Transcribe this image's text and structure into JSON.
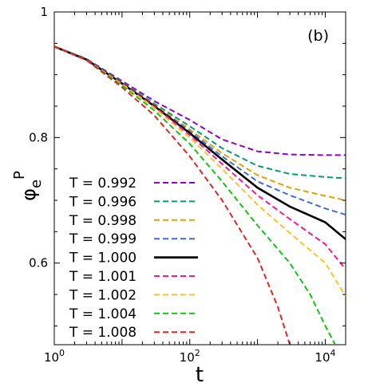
{
  "chart_data": {
    "type": "line",
    "panel_label": "(b)",
    "xlabel": "t",
    "ylabel": {
      "base": "φ",
      "sub": "e",
      "sup": "P"
    },
    "x_scale": "log",
    "xlim": [
      1,
      20000
    ],
    "ylim": [
      0.47,
      1.0
    ],
    "x_ticks": [
      {
        "value": 1,
        "base": "10",
        "exp": "0"
      },
      {
        "value": 100,
        "base": "10",
        "exp": "2"
      },
      {
        "value": 10000,
        "base": "10",
        "exp": "4"
      }
    ],
    "y_ticks": [
      {
        "value": 1.0,
        "label": "1"
      },
      {
        "value": 0.8,
        "label": "0.8"
      },
      {
        "value": 0.6,
        "label": "0.6"
      }
    ],
    "legend_position": "lower-left",
    "series": [
      {
        "name": "T = 0.992",
        "color": "#9400d3",
        "style": "dashed",
        "points": [
          [
            1,
            0.945
          ],
          [
            3,
            0.925
          ],
          [
            10,
            0.89
          ],
          [
            30,
            0.858
          ],
          [
            100,
            0.828
          ],
          [
            300,
            0.797
          ],
          [
            1000,
            0.778
          ],
          [
            3000,
            0.773
          ],
          [
            10000,
            0.772
          ],
          [
            20000,
            0.772
          ]
        ]
      },
      {
        "name": "T = 0.996",
        "color": "#009e73",
        "style": "dashed",
        "points": [
          [
            1,
            0.945
          ],
          [
            3,
            0.925
          ],
          [
            10,
            0.888
          ],
          [
            30,
            0.854
          ],
          [
            100,
            0.818
          ],
          [
            300,
            0.783
          ],
          [
            1000,
            0.755
          ],
          [
            3000,
            0.742
          ],
          [
            10000,
            0.737
          ],
          [
            20000,
            0.735
          ]
        ]
      },
      {
        "name": "T = 0.998",
        "color": "#e69f00",
        "style": "dashed",
        "points": [
          [
            1,
            0.945
          ],
          [
            3,
            0.924
          ],
          [
            10,
            0.887
          ],
          [
            30,
            0.852
          ],
          [
            100,
            0.813
          ],
          [
            300,
            0.775
          ],
          [
            1000,
            0.74
          ],
          [
            3000,
            0.72
          ],
          [
            10000,
            0.707
          ],
          [
            20000,
            0.7
          ]
        ]
      },
      {
        "name": "T = 0.999",
        "color": "#3d6cd9",
        "style": "dashed",
        "points": [
          [
            1,
            0.945
          ],
          [
            3,
            0.924
          ],
          [
            10,
            0.887
          ],
          [
            30,
            0.851
          ],
          [
            100,
            0.81
          ],
          [
            300,
            0.77
          ],
          [
            1000,
            0.73
          ],
          [
            3000,
            0.708
          ],
          [
            10000,
            0.687
          ],
          [
            20000,
            0.677
          ]
        ]
      },
      {
        "name": "T = 1.000",
        "color": "#000000",
        "style": "solid",
        "points": [
          [
            1,
            0.945
          ],
          [
            3,
            0.924
          ],
          [
            10,
            0.886
          ],
          [
            30,
            0.85
          ],
          [
            100,
            0.807
          ],
          [
            300,
            0.765
          ],
          [
            1000,
            0.72
          ],
          [
            3000,
            0.69
          ],
          [
            10000,
            0.665
          ],
          [
            20000,
            0.638
          ]
        ]
      },
      {
        "name": "T = 1.001",
        "color": "#ff1493",
        "style": "dashed",
        "points": [
          [
            1,
            0.945
          ],
          [
            3,
            0.924
          ],
          [
            10,
            0.886
          ],
          [
            30,
            0.849
          ],
          [
            100,
            0.804
          ],
          [
            300,
            0.758
          ],
          [
            1000,
            0.708
          ],
          [
            3000,
            0.67
          ],
          [
            10000,
            0.63
          ],
          [
            20000,
            0.59
          ]
        ]
      },
      {
        "name": "T = 1.002",
        "color": "#ffc125",
        "style": "dashed",
        "points": [
          [
            1,
            0.945
          ],
          [
            3,
            0.923
          ],
          [
            10,
            0.885
          ],
          [
            30,
            0.847
          ],
          [
            100,
            0.8
          ],
          [
            300,
            0.75
          ],
          [
            1000,
            0.693
          ],
          [
            3000,
            0.648
          ],
          [
            10000,
            0.6
          ],
          [
            20000,
            0.547
          ]
        ]
      },
      {
        "name": "T = 1.004",
        "color": "#11c511",
        "style": "dashed",
        "points": [
          [
            1,
            0.945
          ],
          [
            3,
            0.923
          ],
          [
            10,
            0.883
          ],
          [
            30,
            0.843
          ],
          [
            100,
            0.79
          ],
          [
            300,
            0.73
          ],
          [
            1000,
            0.66
          ],
          [
            3000,
            0.6
          ],
          [
            6000,
            0.55
          ],
          [
            10000,
            0.5
          ],
          [
            14000,
            0.47
          ]
        ]
      },
      {
        "name": "T = 1.008",
        "color": "#e3261e",
        "style": "dashed",
        "points": [
          [
            1,
            0.945
          ],
          [
            3,
            0.923
          ],
          [
            10,
            0.88
          ],
          [
            30,
            0.835
          ],
          [
            100,
            0.77
          ],
          [
            300,
            0.7
          ],
          [
            1000,
            0.608
          ],
          [
            2000,
            0.53
          ],
          [
            3000,
            0.47
          ]
        ]
      }
    ]
  }
}
